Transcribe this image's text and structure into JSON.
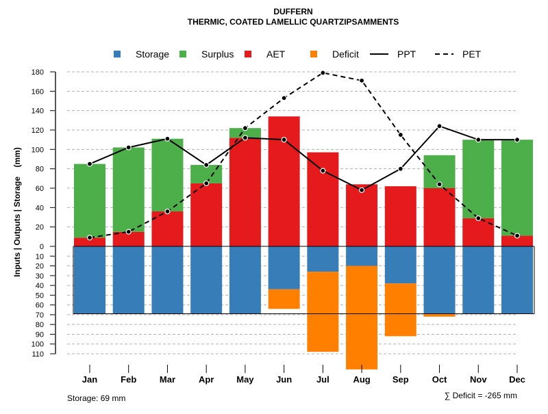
{
  "chart_data": {
    "type": "bar",
    "title": "DUFFERN",
    "subtitle": "THERMIC, COATED LAMELLIC QUARTZIPSAMMENTS",
    "ylabel": "Inputs | Outputs | Storage    (mm)",
    "categories": [
      "Jan",
      "Feb",
      "Mar",
      "Apr",
      "May",
      "Jun",
      "Jul",
      "Aug",
      "Sep",
      "Oct",
      "Nov",
      "Dec"
    ],
    "upper_ylim": [
      0,
      180
    ],
    "upper_ticks": [
      0,
      20,
      40,
      60,
      80,
      100,
      120,
      140,
      160,
      180
    ],
    "lower_ylim": [
      0,
      110
    ],
    "lower_ticks": [
      10,
      20,
      30,
      40,
      50,
      60,
      70,
      80,
      90,
      100,
      110
    ],
    "grid": true,
    "legend_position": "top",
    "legend": [
      {
        "label": "Storage",
        "kind": "box",
        "color": "#377EB8"
      },
      {
        "label": "Surplus",
        "kind": "box",
        "color": "#4DAF4A"
      },
      {
        "label": "AET",
        "kind": "box",
        "color": "#E41A1C"
      },
      {
        "label": "Deficit",
        "kind": "box",
        "color": "#FF7F00"
      },
      {
        "label": "PPT",
        "kind": "solid"
      },
      {
        "label": "PET",
        "kind": "dashed"
      }
    ],
    "series": [
      {
        "name": "AET",
        "color": "#E41A1C",
        "values": [
          9,
          15,
          36,
          65,
          112,
          134,
          97,
          64,
          62,
          60,
          29,
          11
        ]
      },
      {
        "name": "Surplus",
        "color": "#4DAF4A",
        "values": [
          76,
          87,
          75,
          19,
          10,
          0,
          0,
          0,
          0,
          34,
          81,
          99
        ]
      },
      {
        "name": "Storage",
        "color": "#377EB8",
        "values": [
          69,
          69,
          69,
          69,
          69,
          44,
          26,
          20,
          38,
          69,
          69,
          69
        ]
      },
      {
        "name": "Deficit",
        "color": "#FF7F00",
        "values": [
          0,
          0,
          0,
          0,
          0,
          20,
          82,
          106,
          54,
          3,
          0,
          0
        ]
      },
      {
        "name": "PPT",
        "values": [
          85,
          102,
          111,
          84,
          112,
          110,
          78,
          58,
          80,
          124,
          110,
          110
        ]
      },
      {
        "name": "PET",
        "values": [
          9,
          15,
          36,
          65,
          122,
          153,
          179,
          171,
          115,
          64,
          29,
          11
        ]
      }
    ],
    "storage_capacity": 69,
    "footer_left": "Storage: 69 mm",
    "footer_right": "∑ Deficit = -265 mm"
  }
}
